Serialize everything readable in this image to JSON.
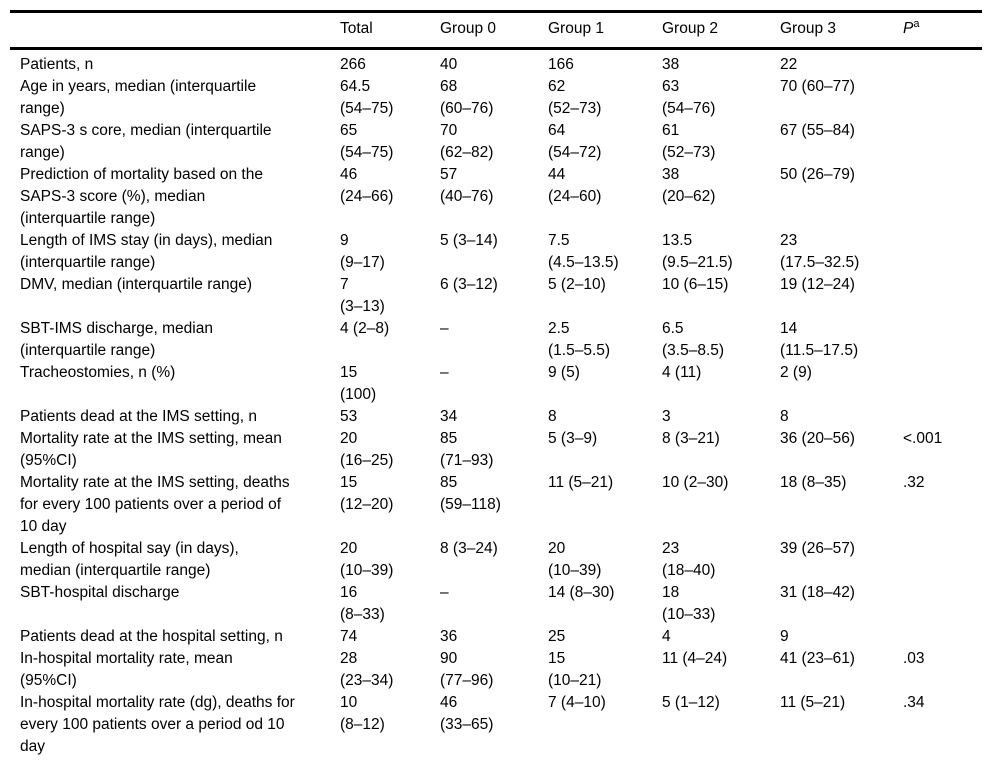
{
  "table": {
    "header": {
      "label": "",
      "columns": [
        "Total",
        "Group 0",
        "Group 1",
        "Group 2",
        "Group 3"
      ],
      "p_label": "P",
      "p_sup": "a"
    },
    "rows": [
      {
        "label": "Patients, n",
        "values": [
          "266",
          "40",
          "166",
          "38",
          "22",
          ""
        ]
      },
      {
        "label": "Age in years, median (interquartile\nrange)",
        "values": [
          "64.5\n(54–75)",
          "68\n(60–76)",
          "62\n(52–73)",
          "63\n(54–76)",
          "70 (60–77)",
          ""
        ]
      },
      {
        "label": "SAPS-3 s core, median (interquartile\nrange)",
        "values": [
          "65\n(54–75)",
          "70\n(62–82)",
          "64\n(54–72)",
          "61\n(52–73)",
          "67 (55–84)",
          ""
        ]
      },
      {
        "label": "Prediction of mortality based on the\nSAPS-3 score (%), median\n(interquartile range)",
        "values": [
          "46\n(24–66)",
          "57\n(40–76)",
          "44\n(24–60)",
          "38\n(20–62)",
          "50 (26–79)",
          ""
        ]
      },
      {
        "label": "Length of IMS stay (in days), median\n(interquartile range)",
        "values": [
          "9\n(9–17)",
          "5 (3–14)",
          "7.5\n(4.5–13.5)",
          "13.5\n(9.5–21.5)",
          "23\n(17.5–32.5)",
          ""
        ]
      },
      {
        "label": "DMV, median (interquartile range)",
        "values": [
          "7\n(3–13)",
          "6 (3–12)",
          "5 (2–10)",
          "10 (6–15)",
          "19 (12–24)",
          ""
        ]
      },
      {
        "label": "SBT-IMS discharge, median\n(interquartile range)",
        "values": [
          "4 (2–8)",
          "–",
          "2.5\n(1.5–5.5)",
          "6.5\n(3.5–8.5)",
          "14\n(11.5–17.5)",
          ""
        ]
      },
      {
        "label": "Tracheostomies, n (%)",
        "values": [
          "15\n(100)",
          "–",
          "9 (5)",
          "4 (11)",
          "2 (9)",
          ""
        ]
      },
      {
        "label": "Patients dead at the IMS setting, n",
        "values": [
          "53",
          "34",
          "8",
          "3",
          "8",
          ""
        ]
      },
      {
        "label": "Mortality rate at the IMS setting, mean\n(95%CI)",
        "values": [
          "20\n(16–25)",
          "85\n(71–93)",
          "5 (3–9)",
          "8 (3–21)",
          "36 (20–56)",
          "<.001"
        ]
      },
      {
        "label": "Mortality rate at the IMS setting, deaths\nfor every 100 patients over a period of\n10 day",
        "values": [
          "15\n(12–20)",
          "85\n(59–118)",
          "11 (5–21)",
          "10 (2–30)",
          "18 (8–35)",
          ".32"
        ]
      },
      {
        "label": "Length of hospital say (in days),\nmedian (interquartile range)",
        "values": [
          "20\n(10–39)",
          "8 (3–24)",
          "20\n(10–39)",
          "23\n(18–40)",
          "39 (26–57)",
          ""
        ]
      },
      {
        "label": "SBT-hospital discharge",
        "values": [
          "16\n(8–33)",
          "–",
          "14 (8–30)",
          "18\n(10–33)",
          "31 (18–42)",
          ""
        ]
      },
      {
        "label": "Patients dead at the hospital setting, n",
        "values": [
          "74",
          "36",
          "25",
          "4",
          "9",
          ""
        ]
      },
      {
        "label": "In-hospital mortality rate, mean\n(95%CI)",
        "values": [
          "28\n(23–34)",
          "90\n(77–96)",
          "15\n(10–21)",
          "11 (4–24)",
          "41 (23–61)",
          ".03"
        ]
      },
      {
        "label": "In-hospital mortality rate (dg), deaths for\nevery 100 patients over a period od 10\nday",
        "values": [
          "10\n(8–12)",
          "46\n(33–65)",
          "7 (4–10)",
          "5 (1–12)",
          "11 (5–21)",
          ".34"
        ]
      }
    ]
  }
}
